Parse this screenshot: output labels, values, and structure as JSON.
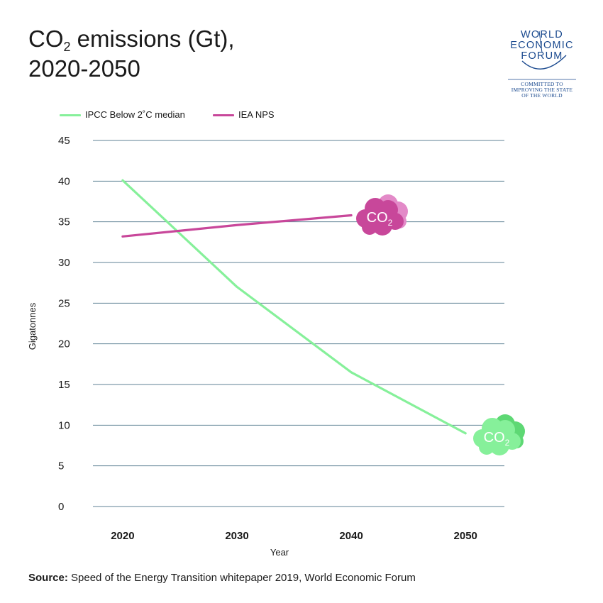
{
  "title": {
    "line1_prefix": "CO",
    "line1_sub": "2",
    "line1_suffix": " emissions (Gt),",
    "line2": "2020-2050"
  },
  "logo": {
    "line1": "WORLD",
    "line2": "ECONOMIC",
    "line3": "FORUM",
    "tagline1": "COMMITTED TO",
    "tagline2": "IMPROVING THE STATE",
    "tagline3": "OF THE WORLD"
  },
  "source": {
    "label": "Source:",
    "text": " Speed of the Energy Transition whitepaper 2019, World Economic Forum"
  },
  "colors": {
    "ipcc": "#86f09a",
    "iea": "#c8479a",
    "grid": "#5f8294",
    "cloud_green": "#86f09a",
    "cloud_green_back": "#5ed874",
    "cloud_pink": "#c8479a",
    "cloud_pink_back": "#e38ac8"
  },
  "cloud_labels": {
    "main": "CO",
    "sub": "2"
  },
  "chart_data": {
    "type": "line",
    "xlabel": "Year",
    "ylabel": "Gigatonnes",
    "xlim": [
      2017.4,
      2053.4
    ],
    "ylim": [
      0,
      45
    ],
    "x_ticks": [
      2020,
      2030,
      2040,
      2050
    ],
    "y_ticks": [
      0,
      5,
      10,
      15,
      20,
      25,
      30,
      35,
      40,
      45
    ],
    "grid": true,
    "legend_position": "top-left",
    "series": [
      {
        "name": "IPCC Below 2˚C median",
        "x": [
          2020,
          2030,
          2040,
          2050
        ],
        "values": [
          40.1,
          27.0,
          16.5,
          9.0
        ]
      },
      {
        "name": "IEA NPS",
        "x": [
          2020,
          2030,
          2040
        ],
        "values": [
          33.2,
          34.6,
          35.8
        ]
      }
    ]
  }
}
